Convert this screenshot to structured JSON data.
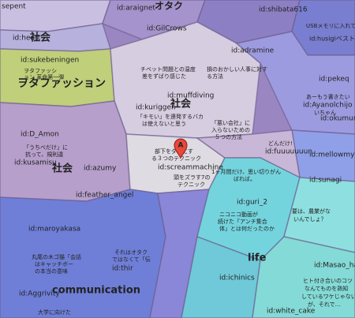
{
  "labels": [
    "sepent",
    "id:araignet",
    "オタク",
    "id:shibata616",
    "USBメモリに入れて持ち運ぶ「ポータブルアプ",
    "id:husigiベスト15",
    "id:heart",
    "社会",
    "id:GilCrows",
    "id:adramine",
    "id:sukebeningen",
    "ヲタファッシ",
    "ョン 革命第一弾",
    "ヲタファッション",
    "チベット問題との温度",
    "差をずばり感じた",
    "損のおかしい人事に対す",
    "る方法",
    "id:pekeq",
    "id:muffdiving",
    "社会",
    "id:kuriggen",
    "あーもう書きたい",
    "id:Ayanolchijo",
    "いちゃん",
    "「キモい」を連発するバカ",
    "は使えないと思う",
    "「悪い会社」に",
    "入らないための",
    "５つの方法",
    "id:okumurao",
    "id:D_Amon",
    "どんだけ!",
    "id:fuuuuuuun",
    "部下をダメにす",
    "る３つのテクニック",
    "id:screammachine",
    "id:mellowmymind",
    "「うちべだけ」に",
    "抗って、規則違",
    "社会",
    "id:kusamisu",
    "id:azumy",
    "頭をズラす7の",
    "テクニック",
    "1ヶ月間だけ、思い切りがん",
    "ばれば。",
    "id:sunagi",
    "id:feather_angel",
    "id:guri_2",
    "要は、農業がな",
    "いんでしょ？",
    "id:maroyakasa",
    "ニコニコ動画が",
    "続けた「アンチ集合",
    "体」とは何だったのか",
    "丸尾の木ゴ猫「会話",
    "はキャッチボー",
    "の本当の意味",
    "それはオタク",
    "ではなくて「伝",
    "id:thir",
    "life",
    "id:ichinics",
    "id:Masao_hate",
    "id:Aggrivity",
    "communication",
    "ヒト付き合いのコツ",
    "なんてものを熟知",
    "しているワケじゃない",
    "が、それで…",
    "id:white_cake",
    "大学に向けた"
  ],
  "marker": "A"
}
